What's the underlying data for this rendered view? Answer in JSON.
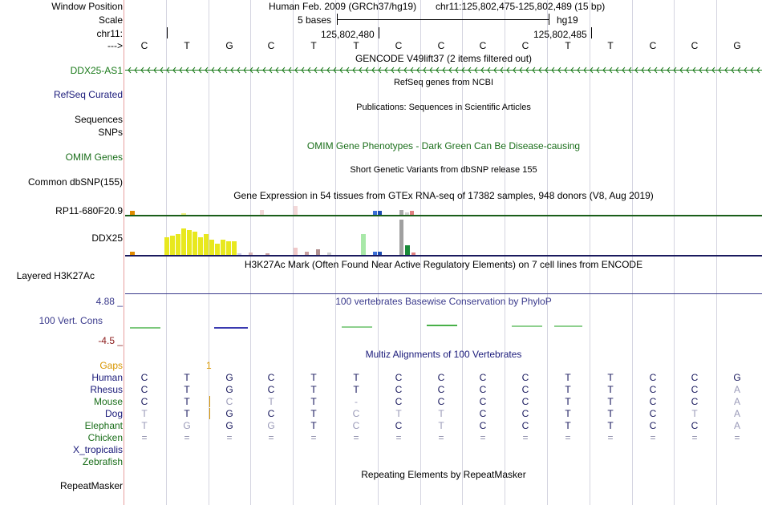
{
  "header": {
    "window_position_label": "Window Position",
    "scale_label": "Scale",
    "chrom_label": "chr11:",
    "arrow_label": "--->",
    "assembly_text": "Human Feb. 2009 (GRCh37/hg19)",
    "position_text": "chr11:125,802,475-125,802,489 (15 bp)",
    "scale_text": "5 bases",
    "scale_db": "hg19",
    "coord_1": "125,802,480",
    "coord_2": "125,802,485"
  },
  "bases": [
    "C",
    "T",
    "G",
    "C",
    "T",
    "T",
    "C",
    "C",
    "C",
    "C",
    "T",
    "T",
    "C",
    "C",
    "G"
  ],
  "tracks": {
    "gencode": {
      "title": "GENCODE V49lift37 (2 items filtered out)",
      "item": "DDX25-AS1"
    },
    "refseq": {
      "label": "RefSeq Curated",
      "title": "RefSeq genes from NCBI"
    },
    "publications": {
      "title": "Publications: Sequences in Scientific Articles"
    },
    "sequences": {
      "label": "Sequences"
    },
    "snps": {
      "label": "SNPs"
    },
    "omim": {
      "label": "OMIM Genes",
      "title": "OMIM Gene Phenotypes - Dark Green Can Be Disease-causing"
    },
    "dbsnp": {
      "label": "Common dbSNP(155)",
      "title": "Short Genetic Variants from dbSNP release 155"
    },
    "gtex": {
      "title": "Gene Expression in 54 tissues from GTEx RNA-seq of 17382 samples, 948 donors (V8, Aug 2019)",
      "gene1": "RP11-680F20.9",
      "gene2": "DDX25"
    },
    "h3k27ac": {
      "label": "Layered H3K27Ac",
      "title": "H3K27Ac Mark (Often Found Near Active Regulatory Elements) on 7 cell lines from ENCODE"
    },
    "conservation": {
      "label": "100 Vert. Cons",
      "title": "100 vertebrates Basewise Conservation by PhyloP",
      "max": "4.88 _",
      "min": "-4.5 _"
    },
    "multiz": {
      "title": "Multiz Alignments of 100 Vertebrates",
      "gaps_label": "Gaps",
      "gap_count": "1",
      "species": [
        {
          "name": "Human",
          "seq": [
            "C",
            "T",
            "G",
            "C",
            "T",
            "T",
            "C",
            "C",
            "C",
            "C",
            "T",
            "T",
            "C",
            "C",
            "G"
          ]
        },
        {
          "name": "Rhesus",
          "seq": [
            "C",
            "T",
            "G",
            "C",
            "T",
            "T",
            "C",
            "C",
            "C",
            "C",
            "T",
            "T",
            "C",
            "C",
            "A"
          ]
        },
        {
          "name": "Mouse",
          "seq": [
            "C",
            "T",
            "C",
            "T",
            "T",
            "-",
            "C",
            "C",
            "C",
            "C",
            "T",
            "T",
            "C",
            "C",
            "A"
          ]
        },
        {
          "name": "Dog",
          "seq": [
            "T",
            "T",
            "G",
            "C",
            "T",
            "C",
            "T",
            "T",
            "C",
            "C",
            "T",
            "T",
            "C",
            "T",
            "A"
          ]
        },
        {
          "name": "Elephant",
          "seq": [
            "T",
            "G",
            "G",
            "G",
            "T",
            "C",
            "C",
            "T",
            "C",
            "C",
            "T",
            "T",
            "C",
            "C",
            "A"
          ]
        },
        {
          "name": "Chicken",
          "seq": [
            "=",
            "=",
            "=",
            "=",
            "=",
            "=",
            "=",
            "=",
            "=",
            "=",
            "=",
            "=",
            "=",
            "=",
            "="
          ]
        },
        {
          "name": "X_tropicalis",
          "seq": []
        },
        {
          "name": "Zebrafish",
          "seq": []
        }
      ]
    },
    "repeatmasker": {
      "label": "RepeatMasker",
      "title": "Repeating Elements by RepeatMasker"
    }
  },
  "colors": {
    "gencode_green": "#1a7a1a",
    "refseq_navy": "#1a1a7a",
    "omim_green": "#1a6e1a",
    "cons_navy": "#3a3a8c",
    "cons_red": "#8b1a1a",
    "gaps_orange": "#d79500",
    "gtex_yellow": "#e8e81e"
  }
}
